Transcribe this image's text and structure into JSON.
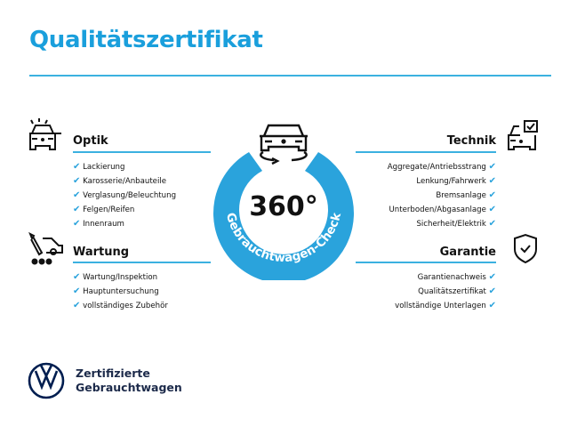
{
  "title": "Qualitätszertifikat",
  "accent": "#2aa3dc",
  "center": {
    "degrees": "360°",
    "arc_text": "Gebrauchtwagen-Check",
    "icon": "car-rotate-icon"
  },
  "sections": {
    "optik": {
      "heading": "Optik",
      "icon": "car-lights-icon",
      "items": [
        "Lackierung",
        "Karosserie/Anbauteile",
        "Verglasung/Beleuchtung",
        "Felgen/Reifen",
        "Innenraum"
      ]
    },
    "wartung": {
      "heading": "Wartung",
      "icon": "tools-car-icon",
      "items": [
        "Wartung/Inspektion",
        "Hauptuntersuchung",
        "vollständiges Zubehör"
      ]
    },
    "technik": {
      "heading": "Technik",
      "icon": "car-checkbox-icon",
      "items": [
        "Aggregate/Antriebsstrang",
        "Lenkung/Fahrwerk",
        "Bremsanlage",
        "Unterboden/Abgasanlage",
        "Sicherheit/Elektrik"
      ]
    },
    "garantie": {
      "heading": "Garantie",
      "icon": "shield-check-icon",
      "items": [
        "Garantienachweis",
        "Qualitätszertifikat",
        "vollständige Unterlagen"
      ]
    }
  },
  "check_mark": "✔",
  "brand": {
    "line1": "Zertifizierte",
    "line2": "Gebrauchtwagen",
    "logo": "vw-logo"
  }
}
